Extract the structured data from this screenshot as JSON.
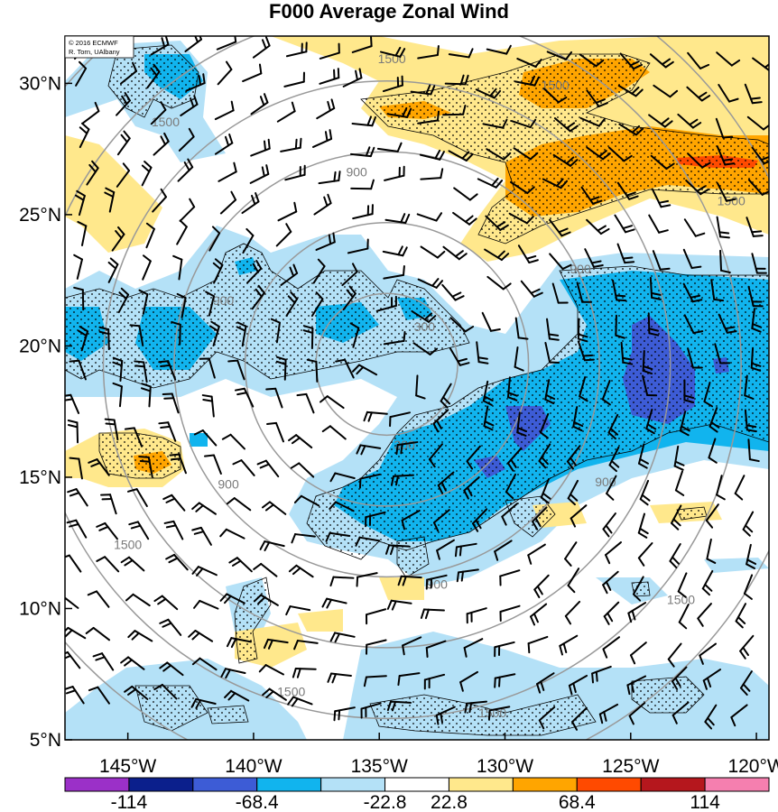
{
  "title": "F000 Average Zonal Wind",
  "credit": {
    "line1": "© 2016 ECMWF",
    "line2": "R. Torn, UAlbany"
  },
  "map": {
    "lat_labels": [
      "30°N",
      "25°N",
      "20°N",
      "15°N",
      "10°N",
      "5°N"
    ],
    "lat_values": [
      30,
      25,
      20,
      15,
      10,
      5
    ],
    "lon_labels": [
      "145°W",
      "140°W",
      "135°W",
      "130°W",
      "125°W",
      "120°W"
    ],
    "lon_values": [
      -145,
      -140,
      -135,
      -130,
      -125,
      -120
    ],
    "lon_range": [
      -147.5,
      -119.5
    ],
    "lat_range": [
      5,
      31.8
    ]
  },
  "range_rings": {
    "center": {
      "lon": -134.7,
      "lat": 19.3
    },
    "labels": [
      "300",
      "900",
      "1500"
    ],
    "label_positions": [
      {
        "text": "300",
        "lon": -134.0,
        "lat": 16.2
      },
      {
        "text": "300",
        "lon": -133.2,
        "lat": 20.7
      },
      {
        "text": "900",
        "lon": -135.9,
        "lat": 26.6
      },
      {
        "text": "900",
        "lon": -141.2,
        "lat": 21.7
      },
      {
        "text": "900",
        "lon": -141.0,
        "lat": 14.7
      },
      {
        "text": "900",
        "lon": -132.7,
        "lat": 10.9
      },
      {
        "text": "900",
        "lon": -126.0,
        "lat": 14.8
      },
      {
        "text": "900",
        "lon": -127.0,
        "lat": 22.9
      },
      {
        "text": "1500",
        "lon": -134.5,
        "lat": 30.9
      },
      {
        "text": "1500",
        "lon": -143.5,
        "lat": 28.5
      },
      {
        "text": "1500",
        "lon": -145.0,
        "lat": 12.4
      },
      {
        "text": "1500",
        "lon": -138.5,
        "lat": 6.8
      },
      {
        "text": "1500",
        "lon": -130.5,
        "lat": 6.0
      },
      {
        "text": "1500",
        "lon": -123.0,
        "lat": 10.3
      },
      {
        "text": "1500",
        "lon": -121.0,
        "lat": 25.5
      },
      {
        "text": "1500",
        "lon": -128.0,
        "lat": 29.9
      }
    ]
  },
  "colorbar": {
    "labels": [
      "-114",
      "-68.4",
      "-22.8",
      "22.8",
      "68.4",
      "114"
    ],
    "colors": [
      "#9b30c8",
      "#0b1f8c",
      "#3d5cd6",
      "#11b4ee",
      "#b4e1f7",
      "#ffffff",
      "#ffe88c",
      "#ffa500",
      "#ff4a00",
      "#b5171d",
      "#f57faf"
    ]
  },
  "shading": {
    "colors": {
      "lightblue": "#b4e1f7",
      "cyan": "#11b4ee",
      "blue": "#3d5cd6",
      "yellow": "#ffe88c",
      "orange": "#ffa500",
      "red": "#ff4a00"
    },
    "note_levels": [
      "-22.8",
      "-68.4",
      "22.8",
      "68.4"
    ]
  }
}
